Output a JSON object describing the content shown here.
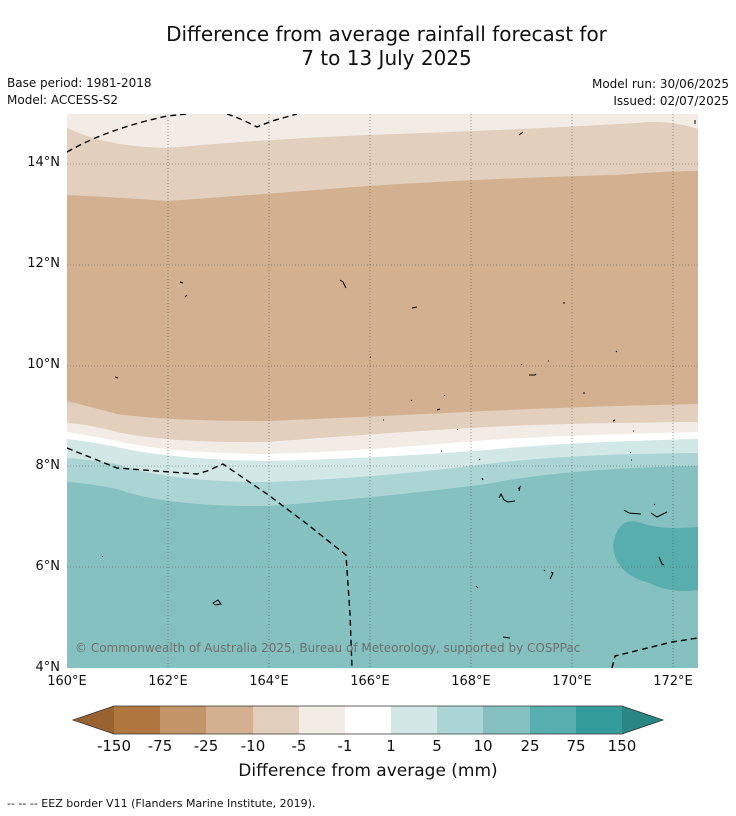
{
  "title": {
    "line1": "Difference from average rainfall forecast for",
    "line2": "7 to 13 July 2025"
  },
  "meta": {
    "base_period": "Base period: 1981-2018",
    "model": "Model: ACCESS-S2",
    "model_run": "Model run: 30/06/2025",
    "issued": "Issued: 02/07/2025"
  },
  "map": {
    "lon_range": [
      160,
      172.5
    ],
    "lat_range": [
      4,
      15
    ],
    "lat_labels": [
      "14°N",
      "12°N",
      "10°N",
      "8°N",
      "6°N",
      "4°N"
    ],
    "lon_labels": [
      "160°E",
      "162°E",
      "164°E",
      "166°E",
      "168°E",
      "170°E",
      "172°E"
    ],
    "copyright": "© Commonwealth of Australia 2025, Bureau of Meteorology, supported by COSPPac"
  },
  "colorbar": {
    "title": "Difference from average (mm)",
    "ticks": [
      "-150",
      "-75",
      "-25",
      "-10",
      "-5",
      "-1",
      "1",
      "5",
      "10",
      "25",
      "75",
      "150"
    ],
    "colors": {
      "lt_-150": "#9a6230",
      "-150_-75": "#b07840",
      "-75_-25": "#c29468",
      "-25_-10": "#d3b190",
      "-10_-5": "#e3cfbd",
      "-5_-1": "#f3ece6",
      "-1_1": "#ffffff",
      "1_5": "#d2e8e6",
      "5_10": "#abd5d5",
      "10_25": "#86c1c1",
      "25_75": "#58aeae",
      "75_150": "#359c9c",
      "gt_150": "#2a8585"
    }
  },
  "footnote": "--  --  -- EEZ border V11 (Flanders Marine Institute, 2019)."
}
